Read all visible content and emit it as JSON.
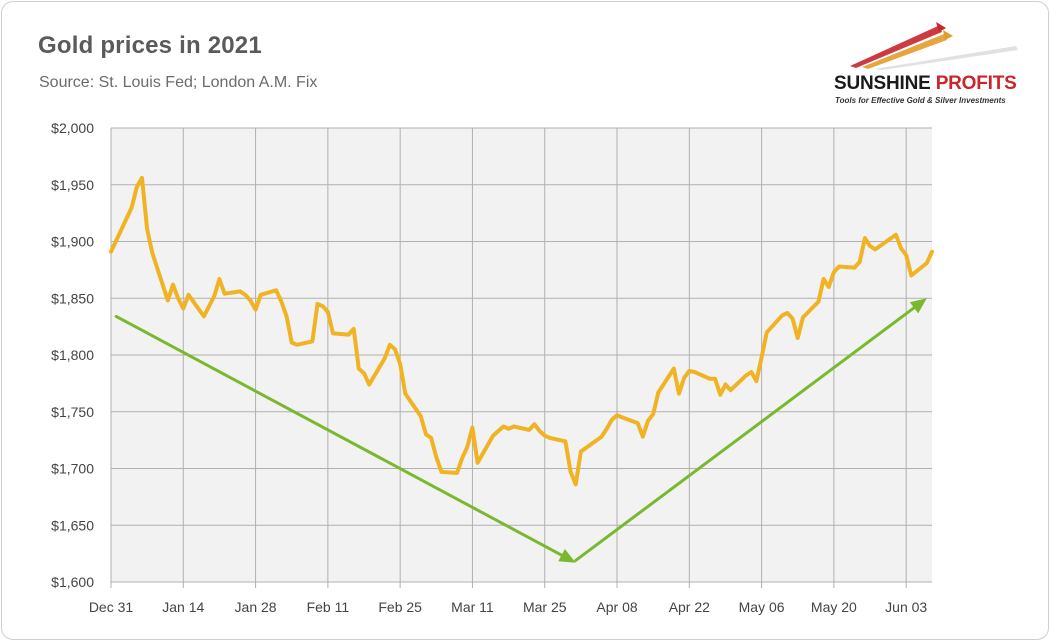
{
  "header": {
    "title": "Gold prices in 2021",
    "subtitle": "Source: St. Louis Fed; London A.M. Fix"
  },
  "logo": {
    "name_part1": "SUNSHINE",
    "name_part2": "PROFITS",
    "tagline": "Tools for Effective Gold & Silver Investments",
    "icon": "rising-arrows-logo-icon"
  },
  "colors": {
    "line": "#f0b323",
    "arrow": "#7ab82e",
    "grid": "#b0b0b0",
    "plot_bg": "#f2f2f2",
    "logo_accent": "#c9252c"
  },
  "chart_data": {
    "type": "line",
    "title": "Gold prices in 2021",
    "subtitle": "Source: St. Louis Fed; London A.M. Fix",
    "xlabel": "",
    "ylabel": "",
    "x_tick_labels": [
      "Dec 31",
      "Jan 14",
      "Jan 28",
      "Feb 11",
      "Feb 25",
      "Mar 11",
      "Mar 25",
      "Apr 08",
      "Apr 22",
      "May 06",
      "May 20",
      "Jun 03"
    ],
    "y_tick_values": [
      1600,
      1650,
      1700,
      1750,
      1800,
      1850,
      1900,
      1950,
      2000
    ],
    "y_tick_labels": [
      "$1,600",
      "$1,650",
      "$1,700",
      "$1,750",
      "$1,800",
      "$1,850",
      "$1,900",
      "$1,950",
      "$2,000"
    ],
    "ylim": [
      1600,
      2000
    ],
    "xlim": [
      "2020-12-31",
      "2021-06-08"
    ],
    "grid": true,
    "legend": "none",
    "series": [
      {
        "points": [
          [
            "2020-12-31",
            1891
          ],
          [
            "2021-01-04",
            1930
          ],
          [
            "2021-01-05",
            1948
          ],
          [
            "2021-01-06",
            1956
          ],
          [
            "2021-01-07",
            1911
          ],
          [
            "2021-01-08",
            1890
          ],
          [
            "2021-01-11",
            1848
          ],
          [
            "2021-01-12",
            1862
          ],
          [
            "2021-01-13",
            1850
          ],
          [
            "2021-01-14",
            1841
          ],
          [
            "2021-01-15",
            1853
          ],
          [
            "2021-01-18",
            1834
          ],
          [
            "2021-01-19",
            1843
          ],
          [
            "2021-01-20",
            1852
          ],
          [
            "2021-01-21",
            1867
          ],
          [
            "2021-01-22",
            1854
          ],
          [
            "2021-01-25",
            1856
          ],
          [
            "2021-01-26",
            1853
          ],
          [
            "2021-01-27",
            1848
          ],
          [
            "2021-01-28",
            1840
          ],
          [
            "2021-01-29",
            1853
          ],
          [
            "2021-02-01",
            1857
          ],
          [
            "2021-02-02",
            1847
          ],
          [
            "2021-02-03",
            1834
          ],
          [
            "2021-02-04",
            1811
          ],
          [
            "2021-02-05",
            1809
          ],
          [
            "2021-02-08",
            1812
          ],
          [
            "2021-02-09",
            1845
          ],
          [
            "2021-02-10",
            1843
          ],
          [
            "2021-02-11",
            1838
          ],
          [
            "2021-02-12",
            1819
          ],
          [
            "2021-02-15",
            1818
          ],
          [
            "2021-02-16",
            1823
          ],
          [
            "2021-02-17",
            1788
          ],
          [
            "2021-02-18",
            1784
          ],
          [
            "2021-02-19",
            1774
          ],
          [
            "2021-02-22",
            1797
          ],
          [
            "2021-02-23",
            1809
          ],
          [
            "2021-02-24",
            1805
          ],
          [
            "2021-02-25",
            1792
          ],
          [
            "2021-02-26",
            1766
          ],
          [
            "2021-03-01",
            1746
          ],
          [
            "2021-03-02",
            1730
          ],
          [
            "2021-03-03",
            1727
          ],
          [
            "2021-03-04",
            1710
          ],
          [
            "2021-03-05",
            1697
          ],
          [
            "2021-03-08",
            1696
          ],
          [
            "2021-03-09",
            1709
          ],
          [
            "2021-03-10",
            1719
          ],
          [
            "2021-03-11",
            1736
          ],
          [
            "2021-03-12",
            1705
          ],
          [
            "2021-03-15",
            1729
          ],
          [
            "2021-03-16",
            1733
          ],
          [
            "2021-03-17",
            1737
          ],
          [
            "2021-03-18",
            1735
          ],
          [
            "2021-03-19",
            1737
          ],
          [
            "2021-03-22",
            1734
          ],
          [
            "2021-03-23",
            1739
          ],
          [
            "2021-03-24",
            1733
          ],
          [
            "2021-03-25",
            1729
          ],
          [
            "2021-03-26",
            1727
          ],
          [
            "2021-03-29",
            1724
          ],
          [
            "2021-03-30",
            1697
          ],
          [
            "2021-03-31",
            1686
          ],
          [
            "2021-04-01",
            1715
          ],
          [
            "2021-04-05",
            1728
          ],
          [
            "2021-04-06",
            1735
          ],
          [
            "2021-04-07",
            1743
          ],
          [
            "2021-04-08",
            1747
          ],
          [
            "2021-04-09",
            1745
          ],
          [
            "2021-04-12",
            1740
          ],
          [
            "2021-04-13",
            1728
          ],
          [
            "2021-04-14",
            1742
          ],
          [
            "2021-04-15",
            1748
          ],
          [
            "2021-04-16",
            1767
          ],
          [
            "2021-04-19",
            1788
          ],
          [
            "2021-04-20",
            1766
          ],
          [
            "2021-04-21",
            1780
          ],
          [
            "2021-04-22",
            1786
          ],
          [
            "2021-04-23",
            1785
          ],
          [
            "2021-04-26",
            1779
          ],
          [
            "2021-04-27",
            1779
          ],
          [
            "2021-04-28",
            1765
          ],
          [
            "2021-04-29",
            1774
          ],
          [
            "2021-04-30",
            1769
          ],
          [
            "2021-05-03",
            1782
          ],
          [
            "2021-05-04",
            1785
          ],
          [
            "2021-05-05",
            1777
          ],
          [
            "2021-05-06",
            1798
          ],
          [
            "2021-05-07",
            1820
          ],
          [
            "2021-05-10",
            1835
          ],
          [
            "2021-05-11",
            1837
          ],
          [
            "2021-05-12",
            1832
          ],
          [
            "2021-05-13",
            1815
          ],
          [
            "2021-05-14",
            1833
          ],
          [
            "2021-05-17",
            1847
          ],
          [
            "2021-05-18",
            1867
          ],
          [
            "2021-05-19",
            1860
          ],
          [
            "2021-05-20",
            1873
          ],
          [
            "2021-05-21",
            1878
          ],
          [
            "2021-05-24",
            1877
          ],
          [
            "2021-05-25",
            1882
          ],
          [
            "2021-05-26",
            1903
          ],
          [
            "2021-05-27",
            1896
          ],
          [
            "2021-05-28",
            1893
          ],
          [
            "2021-06-01",
            1906
          ],
          [
            "2021-06-02",
            1894
          ],
          [
            "2021-06-03",
            1888
          ],
          [
            "2021-06-04",
            1870
          ],
          [
            "2021-06-07",
            1881
          ],
          [
            "2021-06-08",
            1891
          ]
        ]
      }
    ],
    "annotations": [
      {
        "type": "arrow",
        "from": [
          "2021-01-01",
          1834
        ],
        "to": [
          "2021-03-31",
          1617
        ]
      },
      {
        "type": "arrow",
        "from": [
          "2021-03-31",
          1619
        ],
        "to": [
          "2021-06-07",
          1850
        ]
      }
    ]
  }
}
